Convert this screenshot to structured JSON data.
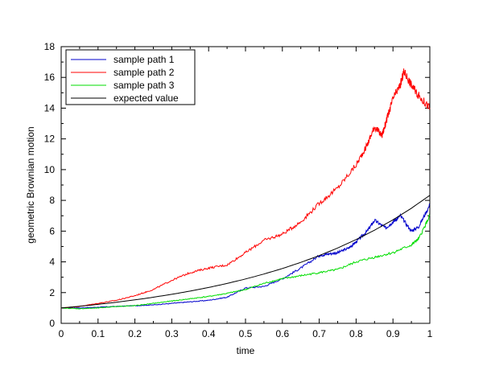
{
  "chart_data": {
    "type": "line",
    "xlabel": "time",
    "ylabel": "geometric Brownian motion",
    "xlim": [
      0,
      1
    ],
    "ylim": [
      0,
      18
    ],
    "x_ticks": [
      "0",
      "0.1",
      "0.2",
      "0.3",
      "0.4",
      "0.5",
      "0.6",
      "0.7",
      "0.8",
      "0.9",
      "1"
    ],
    "y_ticks": [
      "0",
      "2",
      "4",
      "6",
      "8",
      "10",
      "12",
      "14",
      "16",
      "18"
    ],
    "grid": false,
    "legend_position": "top-left",
    "series": [
      {
        "name": "sample path 1",
        "color": "#0000cc",
        "x": [
          0,
          0.05,
          0.1,
          0.15,
          0.2,
          0.25,
          0.3,
          0.35,
          0.4,
          0.45,
          0.5,
          0.55,
          0.6,
          0.65,
          0.7,
          0.72,
          0.75,
          0.78,
          0.8,
          0.83,
          0.85,
          0.88,
          0.9,
          0.92,
          0.95,
          0.97,
          1.0
        ],
        "y": [
          1.0,
          1.0,
          1.05,
          1.1,
          1.15,
          1.2,
          1.3,
          1.4,
          1.5,
          1.7,
          2.3,
          2.4,
          2.9,
          3.6,
          4.4,
          4.5,
          4.6,
          4.9,
          5.3,
          6.0,
          6.7,
          6.2,
          6.6,
          7.0,
          6.0,
          6.3,
          7.7
        ]
      },
      {
        "name": "sample path 2",
        "color": "#ff0000",
        "x": [
          0,
          0.05,
          0.1,
          0.15,
          0.2,
          0.25,
          0.3,
          0.35,
          0.4,
          0.45,
          0.5,
          0.55,
          0.6,
          0.65,
          0.7,
          0.75,
          0.8,
          0.83,
          0.85,
          0.87,
          0.88,
          0.9,
          0.92,
          0.93,
          0.95,
          0.97,
          1.0
        ],
        "y": [
          1.0,
          1.1,
          1.3,
          1.5,
          1.8,
          2.2,
          2.8,
          3.3,
          3.6,
          3.8,
          4.6,
          5.4,
          5.8,
          6.6,
          7.8,
          8.8,
          10.3,
          11.6,
          12.8,
          12.2,
          13.0,
          14.6,
          15.5,
          16.4,
          15.5,
          14.8,
          14.0
        ]
      },
      {
        "name": "sample path 3",
        "color": "#00dd00",
        "x": [
          0,
          0.05,
          0.1,
          0.15,
          0.2,
          0.25,
          0.3,
          0.35,
          0.4,
          0.45,
          0.5,
          0.55,
          0.6,
          0.65,
          0.7,
          0.75,
          0.8,
          0.85,
          0.9,
          0.95,
          0.97,
          1.0
        ],
        "y": [
          1.0,
          0.95,
          1.0,
          1.1,
          1.15,
          1.3,
          1.45,
          1.6,
          1.75,
          1.95,
          2.2,
          2.6,
          2.9,
          3.1,
          3.3,
          3.5,
          4.0,
          4.3,
          4.6,
          5.1,
          5.5,
          7.0
        ]
      },
      {
        "name": "expected value",
        "color": "#000000",
        "x": [
          0,
          0.05,
          0.1,
          0.15,
          0.2,
          0.25,
          0.3,
          0.35,
          0.4,
          0.45,
          0.5,
          0.55,
          0.6,
          0.65,
          0.7,
          0.75,
          0.8,
          0.85,
          0.9,
          0.95,
          1.0
        ],
        "y": [
          1.0,
          1.112,
          1.236,
          1.374,
          1.528,
          1.699,
          1.889,
          2.1,
          2.334,
          2.596,
          2.886,
          3.208,
          3.567,
          3.966,
          4.409,
          4.902,
          5.45,
          6.059,
          6.736,
          7.489,
          8.327
        ]
      }
    ]
  }
}
